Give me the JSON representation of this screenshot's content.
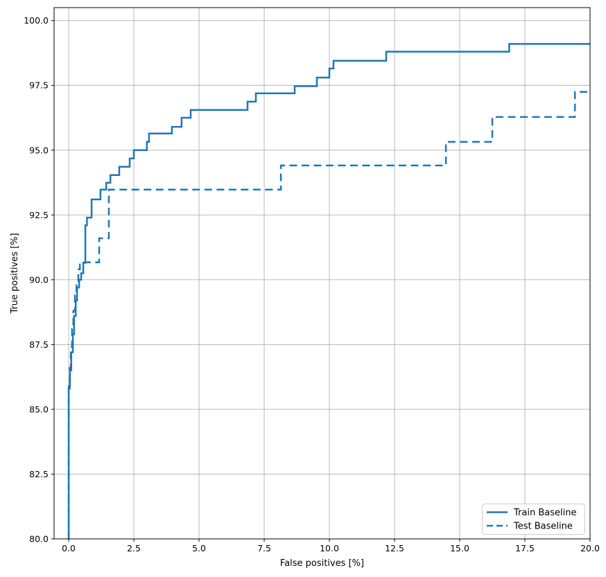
{
  "figure": {
    "background": "#ffffff"
  },
  "chart_data": {
    "type": "line",
    "subtype": "roc-step-curves",
    "title": "",
    "xlabel": "False positives [%]",
    "ylabel": "True positives [%]",
    "xlim": [
      -0.56,
      20.0
    ],
    "ylim": [
      80.0,
      100.5
    ],
    "grid": true,
    "grid_color": "#b0b0b0",
    "axis_color": "#000000",
    "line_color": "#1f77b4",
    "xticks": {
      "values": [
        0,
        2.5,
        5,
        7.5,
        10,
        12.5,
        15,
        17.5,
        20
      ],
      "labels": [
        "0.0",
        "2.5",
        "5.0",
        "7.5",
        "10.0",
        "12.5",
        "15.0",
        "17.5",
        "20.0"
      ]
    },
    "yticks": {
      "values": [
        80,
        82.5,
        85,
        87.5,
        90,
        92.5,
        95,
        97.5,
        100
      ],
      "labels": [
        "80.0",
        "82.5",
        "85.0",
        "87.5",
        "90.0",
        "92.5",
        "95.0",
        "97.5",
        "100.0"
      ]
    },
    "legend": {
      "position": "lower right",
      "entries": [
        {
          "label": "Train Baseline",
          "style": "solid"
        },
        {
          "label": "Test Baseline",
          "style": "dashed"
        }
      ]
    },
    "series": [
      {
        "name": "Train Baseline",
        "style": "solid",
        "color": "#1f77b4",
        "points": [
          [
            0,
            80
          ],
          [
            0,
            85.9
          ],
          [
            0.05,
            85.9
          ],
          [
            0.05,
            86.5
          ],
          [
            0.1,
            86.5
          ],
          [
            0.1,
            87.2
          ],
          [
            0.16,
            87.2
          ],
          [
            0.16,
            87.9
          ],
          [
            0.21,
            87.9
          ],
          [
            0.21,
            88.6
          ],
          [
            0.27,
            88.6
          ],
          [
            0.27,
            89.2
          ],
          [
            0.32,
            89.2
          ],
          [
            0.32,
            89.7
          ],
          [
            0.4,
            89.7
          ],
          [
            0.4,
            90.0
          ],
          [
            0.48,
            90.0
          ],
          [
            0.48,
            90.25
          ],
          [
            0.56,
            90.25
          ],
          [
            0.56,
            90.65
          ],
          [
            0.64,
            90.65
          ],
          [
            0.64,
            92.1
          ],
          [
            0.7,
            92.1
          ],
          [
            0.7,
            92.4
          ],
          [
            0.88,
            92.4
          ],
          [
            0.88,
            93.1
          ],
          [
            1.22,
            93.1
          ],
          [
            1.22,
            93.48
          ],
          [
            1.44,
            93.48
          ],
          [
            1.44,
            93.74
          ],
          [
            1.6,
            93.74
          ],
          [
            1.6,
            94.04
          ],
          [
            1.94,
            94.04
          ],
          [
            1.94,
            94.36
          ],
          [
            2.34,
            94.36
          ],
          [
            2.34,
            94.68
          ],
          [
            2.5,
            94.68
          ],
          [
            2.5,
            95.0
          ],
          [
            3.0,
            95.0
          ],
          [
            3.0,
            95.32
          ],
          [
            3.08,
            95.32
          ],
          [
            3.08,
            95.64
          ],
          [
            3.96,
            95.64
          ],
          [
            3.96,
            95.9
          ],
          [
            4.33,
            95.9
          ],
          [
            4.33,
            96.25
          ],
          [
            4.68,
            96.25
          ],
          [
            4.68,
            96.55
          ],
          [
            6.86,
            96.55
          ],
          [
            6.86,
            96.87
          ],
          [
            7.18,
            96.87
          ],
          [
            7.18,
            97.19
          ],
          [
            8.67,
            97.19
          ],
          [
            8.67,
            97.47
          ],
          [
            9.52,
            97.47
          ],
          [
            9.52,
            97.8
          ],
          [
            10.0,
            97.8
          ],
          [
            10.0,
            98.15
          ],
          [
            10.16,
            98.15
          ],
          [
            10.16,
            98.45
          ],
          [
            12.18,
            98.45
          ],
          [
            12.18,
            98.8
          ],
          [
            16.9,
            98.8
          ],
          [
            16.9,
            99.1
          ],
          [
            20,
            99.1
          ]
        ]
      },
      {
        "name": "Test Baseline",
        "style": "dashed",
        "color": "#1f77b4",
        "points": [
          [
            0,
            80
          ],
          [
            0,
            85.8
          ],
          [
            0.04,
            85.8
          ],
          [
            0.04,
            86.6
          ],
          [
            0.08,
            86.6
          ],
          [
            0.08,
            87.4
          ],
          [
            0.13,
            87.4
          ],
          [
            0.13,
            88.1
          ],
          [
            0.18,
            88.1
          ],
          [
            0.18,
            88.8
          ],
          [
            0.24,
            88.8
          ],
          [
            0.24,
            89.4
          ],
          [
            0.3,
            89.4
          ],
          [
            0.3,
            89.95
          ],
          [
            0.37,
            89.95
          ],
          [
            0.37,
            90.4
          ],
          [
            0.43,
            90.4
          ],
          [
            0.43,
            90.67
          ],
          [
            1.17,
            90.67
          ],
          [
            1.17,
            91.6
          ],
          [
            1.54,
            91.6
          ],
          [
            1.54,
            93.48
          ],
          [
            8.14,
            93.48
          ],
          [
            8.14,
            94.41
          ],
          [
            14.47,
            94.41
          ],
          [
            14.47,
            95.32
          ],
          [
            16.25,
            95.32
          ],
          [
            16.25,
            96.28
          ],
          [
            19.42,
            96.28
          ],
          [
            19.42,
            97.25
          ],
          [
            20,
            97.25
          ]
        ]
      }
    ]
  }
}
